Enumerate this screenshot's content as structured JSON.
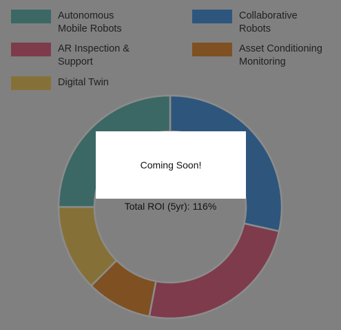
{
  "chart_data": {
    "type": "pie",
    "subtype": "donut",
    "legend_position": "top",
    "categories": [
      "Autonomous\nMobile Robots",
      "Collaborative\nRobots",
      "AR Inspection &\nSupport",
      "Asset Conditioning\nMonitoring",
      "Digital Twin"
    ],
    "values": [
      25,
      28.5,
      24.5,
      9.5,
      12.5
    ],
    "colors": [
      "#3b6864",
      "#2e567d",
      "#7e3b4b",
      "#7f5021",
      "#857138"
    ],
    "slice_order": [
      1,
      2,
      3,
      4,
      0
    ],
    "center_label": "Total ROI (5yr): 116%"
  },
  "overlay": {
    "text": "Coming Soon!"
  }
}
